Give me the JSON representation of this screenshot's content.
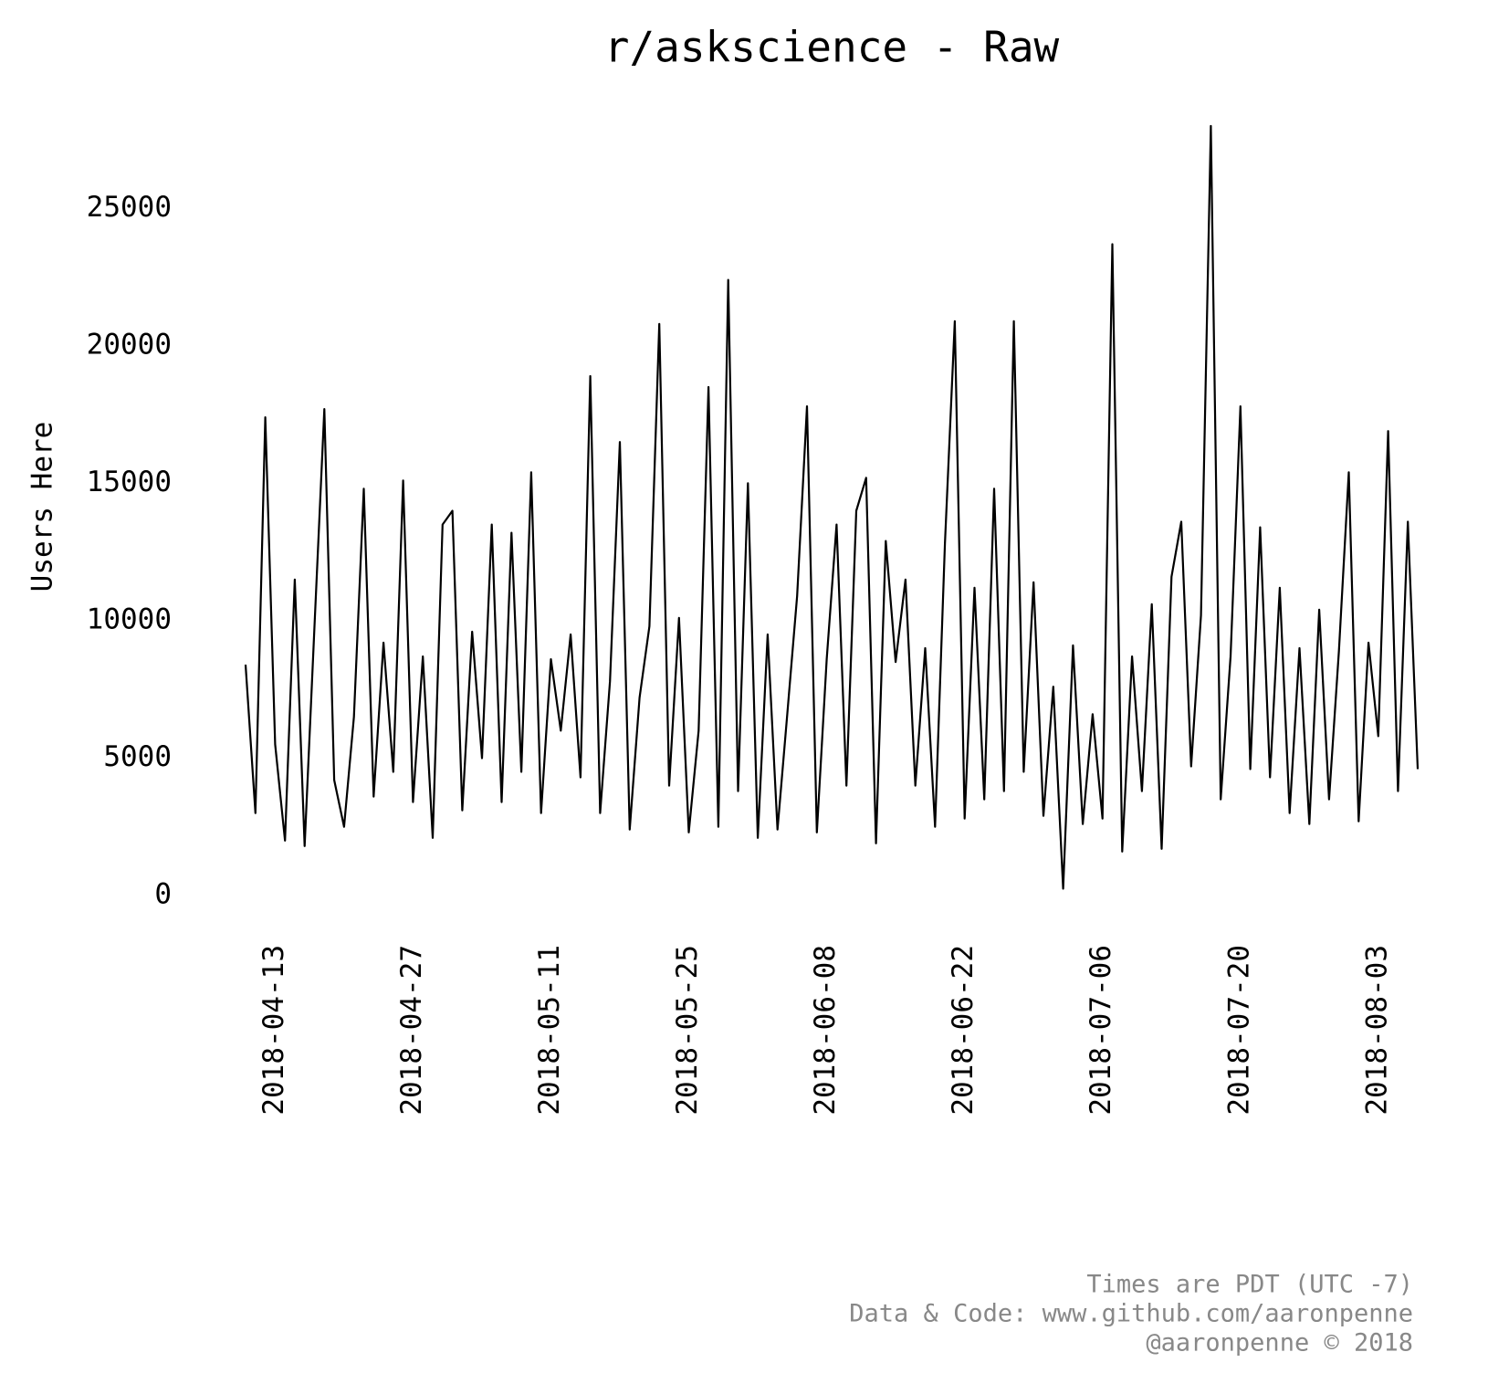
{
  "chart_data": {
    "type": "line",
    "title": "r/askscience - Raw",
    "ylabel": "Users Here",
    "footnote": [
      "Times are PDT (UTC -7)",
      "Data & Code: www.github.com/aaronpenne",
      "@aaronpenne © 2018"
    ],
    "color": "#000000",
    "x": [
      "2018-04-10",
      "2018-04-11",
      "2018-04-12",
      "2018-04-13",
      "2018-04-14",
      "2018-04-15",
      "2018-04-16",
      "2018-04-17",
      "2018-04-18",
      "2018-04-19",
      "2018-04-20",
      "2018-04-21",
      "2018-04-22",
      "2018-04-23",
      "2018-04-24",
      "2018-04-25",
      "2018-04-26",
      "2018-04-27",
      "2018-04-28",
      "2018-04-29",
      "2018-04-30",
      "2018-05-01",
      "2018-05-02",
      "2018-05-03",
      "2018-05-04",
      "2018-05-05",
      "2018-05-06",
      "2018-05-07",
      "2018-05-08",
      "2018-05-09",
      "2018-05-10",
      "2018-05-11",
      "2018-05-12",
      "2018-05-13",
      "2018-05-14",
      "2018-05-15",
      "2018-05-16",
      "2018-05-17",
      "2018-05-18",
      "2018-05-19",
      "2018-05-20",
      "2018-05-21",
      "2018-05-22",
      "2018-05-23",
      "2018-05-24",
      "2018-05-25",
      "2018-05-26",
      "2018-05-27",
      "2018-05-28",
      "2018-05-29",
      "2018-05-30",
      "2018-05-31",
      "2018-06-01",
      "2018-06-02",
      "2018-06-03",
      "2018-06-04",
      "2018-06-05",
      "2018-06-06",
      "2018-06-07",
      "2018-06-08",
      "2018-06-09",
      "2018-06-10",
      "2018-06-11",
      "2018-06-12",
      "2018-06-13",
      "2018-06-14",
      "2018-06-15",
      "2018-06-16",
      "2018-06-17",
      "2018-06-18",
      "2018-06-19",
      "2018-06-20",
      "2018-06-21",
      "2018-06-22",
      "2018-06-23",
      "2018-06-24",
      "2018-06-25",
      "2018-06-26",
      "2018-06-27",
      "2018-06-28",
      "2018-06-29",
      "2018-06-30",
      "2018-07-01",
      "2018-07-02",
      "2018-07-03",
      "2018-07-04",
      "2018-07-05",
      "2018-07-06",
      "2018-07-07",
      "2018-07-08",
      "2018-07-09",
      "2018-07-10",
      "2018-07-11",
      "2018-07-12",
      "2018-07-13",
      "2018-07-14",
      "2018-07-15",
      "2018-07-16",
      "2018-07-17",
      "2018-07-18",
      "2018-07-19",
      "2018-07-20",
      "2018-07-21",
      "2018-07-22",
      "2018-07-23",
      "2018-07-24",
      "2018-07-25",
      "2018-07-26",
      "2018-07-27",
      "2018-07-28",
      "2018-07-29",
      "2018-07-30",
      "2018-07-31",
      "2018-08-01",
      "2018-08-02",
      "2018-08-03",
      "2018-08-04",
      "2018-08-05",
      "2018-08-06",
      "2018-08-07"
    ],
    "values": [
      8400,
      3000,
      17400,
      5500,
      2000,
      11500,
      1800,
      9800,
      17700,
      4200,
      2500,
      6500,
      14800,
      3600,
      9200,
      4500,
      15100,
      3400,
      8700,
      2100,
      13500,
      14000,
      3100,
      9600,
      5000,
      13500,
      3400,
      13200,
      4500,
      15400,
      3000,
      8600,
      6000,
      9500,
      4300,
      18900,
      3000,
      7800,
      16500,
      2400,
      7200,
      9800,
      20800,
      4000,
      10100,
      2300,
      6000,
      18500,
      2500,
      22400,
      3800,
      15000,
      2100,
      9500,
      2400,
      6600,
      10900,
      17800,
      2300,
      8600,
      13500,
      4000,
      14000,
      15200,
      1900,
      12900,
      8500,
      11500,
      4000,
      9000,
      2500,
      12800,
      20900,
      2800,
      11200,
      3500,
      14800,
      3800,
      20900,
      4500,
      11400,
      2900,
      7600,
      250,
      9100,
      2600,
      6600,
      2800,
      23700,
      1600,
      8700,
      3800,
      10600,
      1700,
      11600,
      13600,
      4700,
      10200,
      28000,
      3500,
      8700,
      17800,
      4600,
      13400,
      4300,
      11200,
      3000,
      9000,
      2600,
      10400,
      3500,
      8900,
      15400,
      2700,
      9200,
      5800,
      16900,
      3800,
      13600,
      4600
    ],
    "xlim": [
      "2018-04-10",
      "2018-08-07"
    ],
    "xticks": [
      "2018-04-13",
      "2018-04-27",
      "2018-05-11",
      "2018-05-25",
      "2018-06-08",
      "2018-06-22",
      "2018-07-06",
      "2018-07-20",
      "2018-08-03"
    ],
    "ylim": [
      0,
      28000
    ],
    "yticks": [
      0,
      5000,
      10000,
      15000,
      20000,
      25000
    ]
  }
}
